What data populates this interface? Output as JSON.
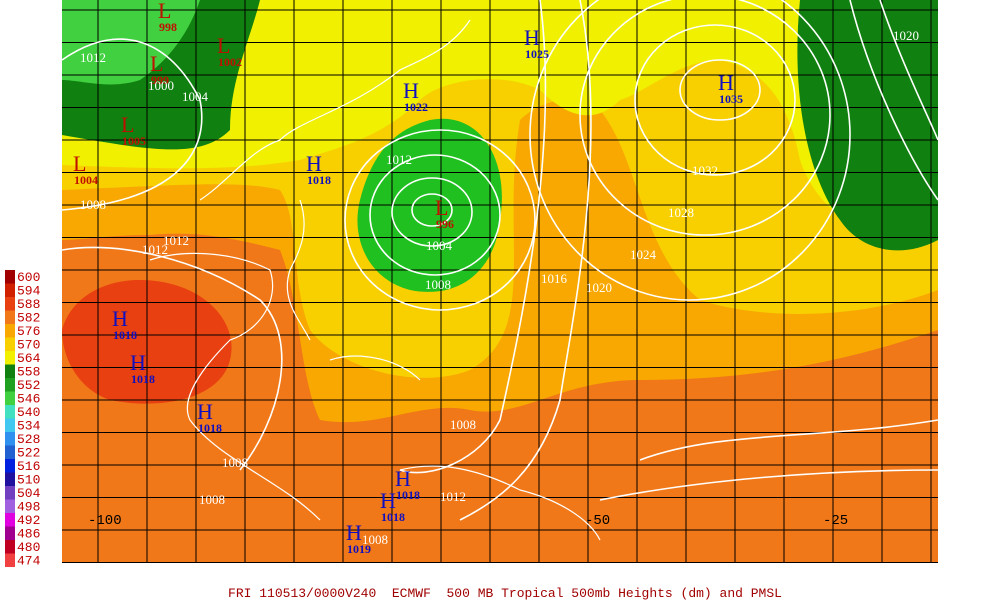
{
  "legend": [
    {
      "label": "600",
      "color": "#a00000"
    },
    {
      "label": "594",
      "color": "#d02000"
    },
    {
      "label": "588",
      "color": "#e84010"
    },
    {
      "label": "582",
      "color": "#f07818"
    },
    {
      "label": "576",
      "color": "#f8a800"
    },
    {
      "label": "570",
      "color": "#f8d000"
    },
    {
      "label": "564",
      "color": "#f0f000"
    },
    {
      "label": "558",
      "color": "#108010"
    },
    {
      "label": "552",
      "color": "#20a020"
    },
    {
      "label": "546",
      "color": "#40d040"
    },
    {
      "label": "540",
      "color": "#40e0c0"
    },
    {
      "label": "534",
      "color": "#40c8f0"
    },
    {
      "label": "528",
      "color": "#3090f0"
    },
    {
      "label": "522",
      "color": "#2060d0"
    },
    {
      "label": "516",
      "color": "#0020e0"
    },
    {
      "label": "510",
      "color": "#2010a0"
    },
    {
      "label": "504",
      "color": "#7040c0"
    },
    {
      "label": "498",
      "color": "#a060e0"
    },
    {
      "label": "492",
      "color": "#e000e0"
    },
    {
      "label": "486",
      "color": "#a00090"
    },
    {
      "label": "480",
      "color": "#c00020"
    },
    {
      "label": "474",
      "color": "#f04040"
    }
  ],
  "centers": [
    {
      "letter": "L",
      "value": "998"
    },
    {
      "letter": "L",
      "value": "1002"
    },
    {
      "letter": "L",
      "value": "999"
    },
    {
      "letter": "L",
      "value": "1005"
    },
    {
      "letter": "L",
      "value": "1004"
    },
    {
      "letter": "L",
      "value": "996"
    },
    {
      "letter": "H",
      "value": "1025"
    },
    {
      "letter": "H",
      "value": "1035"
    },
    {
      "letter": "H",
      "value": "1022"
    },
    {
      "letter": "H",
      "value": "1018"
    },
    {
      "letter": "H",
      "value": "1018"
    },
    {
      "letter": "H",
      "value": "1018"
    },
    {
      "letter": "H",
      "value": "1018"
    },
    {
      "letter": "H",
      "value": "1018"
    },
    {
      "letter": "H",
      "value": "1018"
    },
    {
      "letter": "H",
      "value": "1019"
    }
  ],
  "isobar_labels": [
    "1012",
    "1000",
    "1004",
    "1008",
    "1012",
    "1012",
    "1012",
    "1004",
    "1008",
    "1016",
    "1020",
    "1024",
    "1028",
    "1032",
    "1020",
    "1008",
    "1008",
    "1008",
    "1012",
    "1008"
  ],
  "longitude_labels": [
    "-100",
    "-50",
    "-25"
  ],
  "caption": "FRI 110513/0000V240  ECMWF  500 MB Tropical 500mb Heights (dm) and PMSL"
}
